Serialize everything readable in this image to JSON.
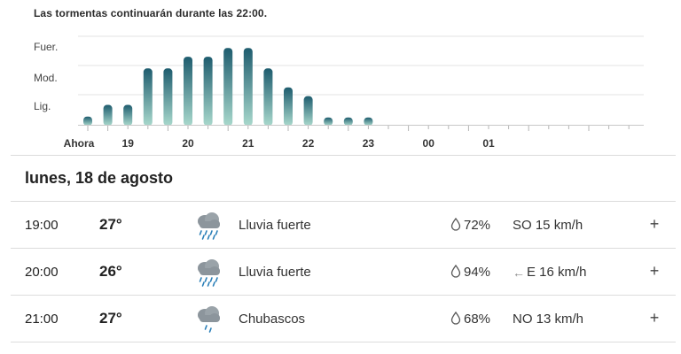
{
  "summary": "Las tormentas continuarán durante las 22:00.",
  "chart_data": {
    "type": "bar",
    "intensity_levels": [
      "Lig.",
      "Mod.",
      "Fuer."
    ],
    "x_tick_labels": [
      "Ahora",
      "19",
      "20",
      "21",
      "22",
      "23",
      "00",
      "01"
    ],
    "values": [
      0.25,
      0.65,
      0.65,
      1.9,
      1.9,
      2.3,
      2.3,
      2.6,
      2.6,
      1.9,
      1.25,
      0.95,
      0.22,
      0.22,
      0.22
    ],
    "ylim": [
      0,
      3
    ],
    "grid": true
  },
  "colors": {
    "bar_top": "#1e5c6e",
    "bar_bottom": "#a8d8cc",
    "grid": "#e3e3e3",
    "axis": "#c8c8c8"
  },
  "day": {
    "title": "lunes, 18 de agosto"
  },
  "hours": [
    {
      "time": "19:00",
      "temp": "27°",
      "icon": "heavy-rain-icon",
      "description": "Lluvia fuerte",
      "precip": "72%",
      "wind_arrow": "",
      "wind": "SO 15 km/h",
      "expand": "+"
    },
    {
      "time": "20:00",
      "temp": "26°",
      "icon": "heavy-rain-icon",
      "description": "Lluvia fuerte",
      "precip": "94%",
      "wind_arrow": "←",
      "wind": "E 16 km/h",
      "expand": "+"
    },
    {
      "time": "21:00",
      "temp": "27°",
      "icon": "showers-icon",
      "description": "Chubascos",
      "precip": "68%",
      "wind_arrow": "",
      "wind": "NO 13 km/h",
      "expand": "+"
    }
  ]
}
